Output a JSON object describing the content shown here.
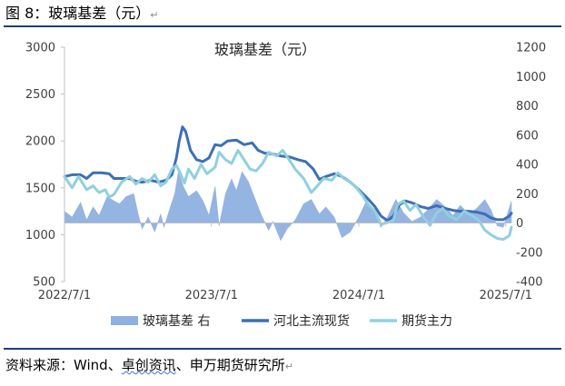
{
  "figure_label": "图 8：玻璃基差（元）",
  "return_mark": "↵",
  "source_prefix": "资料来源：Wind、",
  "source_squiggle": "卓创资讯",
  "source_suffix": "、申万期货研究所",
  "colors": {
    "basis": "#8fb0e0",
    "spot": "#3d6fb6",
    "futures": "#8fd0de",
    "rule": "#1f3f7a"
  },
  "chart_data": {
    "type": "line",
    "title": "玻璃基差（元）",
    "x_ticks": [
      "2022/7/1",
      "2023/7/1",
      "2024/7/1",
      "2025/7/1"
    ],
    "x_range": [
      "2022-07-01",
      "2025-07-15"
    ],
    "y_left": {
      "min": 500,
      "max": 3000,
      "ticks": [
        500,
        1000,
        1500,
        2000,
        2500,
        3000
      ]
    },
    "y_right": {
      "min": -400,
      "max": 1200,
      "ticks": [
        -400,
        -200,
        0,
        200,
        400,
        600,
        800,
        1000,
        1200
      ]
    },
    "legend": [
      "玻璃基差 右",
      "河北主流现货",
      "期货主力"
    ],
    "legend_position": "bottom",
    "series": [
      {
        "name": "玻璃基差 右",
        "kind": "area",
        "axis": "right",
        "points": [
          [
            "2022-07-01",
            80
          ],
          [
            "2022-07-20",
            40
          ],
          [
            "2022-08-10",
            140
          ],
          [
            "2022-08-25",
            20
          ],
          [
            "2022-09-10",
            110
          ],
          [
            "2022-09-25",
            50
          ],
          [
            "2022-10-15",
            180
          ],
          [
            "2022-11-01",
            150
          ],
          [
            "2022-11-15",
            130
          ],
          [
            "2022-12-01",
            180
          ],
          [
            "2022-12-20",
            200
          ],
          [
            "2022-12-31",
            60
          ],
          [
            "2023-01-10",
            -40
          ],
          [
            "2023-01-25",
            40
          ],
          [
            "2023-02-10",
            -60
          ],
          [
            "2023-02-25",
            60
          ],
          [
            "2023-03-05",
            -30
          ],
          [
            "2023-03-20",
            100
          ],
          [
            "2023-04-01",
            200
          ],
          [
            "2023-04-10",
            350
          ],
          [
            "2023-04-22",
            250
          ],
          [
            "2023-05-05",
            180
          ],
          [
            "2023-05-25",
            220
          ],
          [
            "2023-06-10",
            150
          ],
          [
            "2023-06-25",
            50
          ],
          [
            "2023-07-10",
            250
          ],
          [
            "2023-07-20",
            -20
          ],
          [
            "2023-08-05",
            200
          ],
          [
            "2023-08-20",
            300
          ],
          [
            "2023-09-01",
            220
          ],
          [
            "2023-09-15",
            350
          ],
          [
            "2023-10-01",
            280
          ],
          [
            "2023-10-15",
            180
          ],
          [
            "2023-11-01",
            60
          ],
          [
            "2023-11-20",
            -50
          ],
          [
            "2023-12-01",
            10
          ],
          [
            "2023-12-20",
            -120
          ],
          [
            "2024-01-05",
            -40
          ],
          [
            "2024-01-25",
            20
          ],
          [
            "2024-02-15",
            130
          ],
          [
            "2024-03-05",
            160
          ],
          [
            "2024-03-25",
            60
          ],
          [
            "2024-04-10",
            110
          ],
          [
            "2024-05-01",
            40
          ],
          [
            "2024-05-20",
            -100
          ],
          [
            "2024-06-10",
            -60
          ],
          [
            "2024-07-01",
            40
          ],
          [
            "2024-07-20",
            150
          ],
          [
            "2024-08-10",
            60
          ],
          [
            "2024-08-25",
            -30
          ],
          [
            "2024-09-10",
            40
          ],
          [
            "2024-10-01",
            160
          ],
          [
            "2024-10-20",
            70
          ],
          [
            "2024-11-10",
            10
          ],
          [
            "2024-12-01",
            40
          ],
          [
            "2024-12-20",
            90
          ],
          [
            "2025-01-10",
            160
          ],
          [
            "2025-02-01",
            110
          ],
          [
            "2025-02-20",
            50
          ],
          [
            "2025-03-10",
            120
          ],
          [
            "2025-04-01",
            60
          ],
          [
            "2025-04-20",
            100
          ],
          [
            "2025-05-10",
            160
          ],
          [
            "2025-05-25",
            90
          ],
          [
            "2025-06-10",
            -20
          ],
          [
            "2025-06-25",
            -30
          ],
          [
            "2025-07-15",
            150
          ]
        ]
      },
      {
        "name": "河北主流现货",
        "kind": "line",
        "axis": "left",
        "points": [
          [
            "2022-07-01",
            1620
          ],
          [
            "2022-07-20",
            1640
          ],
          [
            "2022-08-10",
            1640
          ],
          [
            "2022-08-25",
            1600
          ],
          [
            "2022-09-10",
            1660
          ],
          [
            "2022-10-01",
            1660
          ],
          [
            "2022-10-20",
            1650
          ],
          [
            "2022-11-01",
            1600
          ],
          [
            "2022-11-20",
            1600
          ],
          [
            "2022-12-10",
            1600
          ],
          [
            "2022-12-25",
            1570
          ],
          [
            "2023-01-10",
            1560
          ],
          [
            "2023-01-31",
            1580
          ],
          [
            "2023-02-20",
            1560
          ],
          [
            "2023-03-10",
            1580
          ],
          [
            "2023-03-25",
            1640
          ],
          [
            "2023-04-05",
            1820
          ],
          [
            "2023-04-12",
            2000
          ],
          [
            "2023-04-20",
            2150
          ],
          [
            "2023-04-28",
            2100
          ],
          [
            "2023-05-10",
            1900
          ],
          [
            "2023-05-25",
            1800
          ],
          [
            "2023-06-10",
            1780
          ],
          [
            "2023-06-25",
            1820
          ],
          [
            "2023-07-10",
            1960
          ],
          [
            "2023-07-25",
            1950
          ],
          [
            "2023-08-10",
            2000
          ],
          [
            "2023-09-01",
            2010
          ],
          [
            "2023-09-20",
            1960
          ],
          [
            "2023-10-10",
            1980
          ],
          [
            "2023-10-25",
            1900
          ],
          [
            "2023-11-10",
            1870
          ],
          [
            "2023-12-01",
            1860
          ],
          [
            "2023-12-20",
            1840
          ],
          [
            "2024-01-10",
            1830
          ],
          [
            "2024-02-01",
            1800
          ],
          [
            "2024-02-20",
            1780
          ],
          [
            "2024-03-10",
            1700
          ],
          [
            "2024-03-25",
            1590
          ],
          [
            "2024-04-10",
            1620
          ],
          [
            "2024-05-01",
            1650
          ],
          [
            "2024-05-20",
            1620
          ],
          [
            "2024-06-10",
            1560
          ],
          [
            "2024-07-01",
            1480
          ],
          [
            "2024-07-20",
            1400
          ],
          [
            "2024-08-10",
            1300
          ],
          [
            "2024-08-25",
            1200
          ],
          [
            "2024-09-10",
            1150
          ],
          [
            "2024-09-25",
            1200
          ],
          [
            "2024-10-10",
            1320
          ],
          [
            "2024-10-25",
            1360
          ],
          [
            "2024-11-10",
            1340
          ],
          [
            "2024-12-01",
            1300
          ],
          [
            "2024-12-20",
            1280
          ],
          [
            "2025-01-10",
            1310
          ],
          [
            "2025-02-01",
            1280
          ],
          [
            "2025-02-20",
            1260
          ],
          [
            "2025-03-10",
            1250
          ],
          [
            "2025-04-01",
            1250
          ],
          [
            "2025-04-20",
            1240
          ],
          [
            "2025-05-10",
            1220
          ],
          [
            "2025-05-25",
            1180
          ],
          [
            "2025-06-10",
            1160
          ],
          [
            "2025-06-25",
            1160
          ],
          [
            "2025-07-10",
            1200
          ],
          [
            "2025-07-15",
            1230
          ]
        ]
      },
      {
        "name": "期货主力",
        "kind": "line",
        "axis": "left",
        "points": [
          [
            "2022-07-01",
            1620
          ],
          [
            "2022-07-20",
            1500
          ],
          [
            "2022-08-05",
            1620
          ],
          [
            "2022-08-25",
            1480
          ],
          [
            "2022-09-10",
            1520
          ],
          [
            "2022-09-25",
            1450
          ],
          [
            "2022-10-10",
            1480
          ],
          [
            "2022-10-20",
            1400
          ],
          [
            "2022-11-01",
            1430
          ],
          [
            "2022-11-20",
            1560
          ],
          [
            "2022-12-10",
            1620
          ],
          [
            "2022-12-25",
            1540
          ],
          [
            "2023-01-10",
            1600
          ],
          [
            "2023-01-25",
            1560
          ],
          [
            "2023-02-10",
            1640
          ],
          [
            "2023-02-25",
            1520
          ],
          [
            "2023-03-10",
            1560
          ],
          [
            "2023-03-25",
            1700
          ],
          [
            "2023-04-05",
            1740
          ],
          [
            "2023-04-15",
            1650
          ],
          [
            "2023-04-25",
            1550
          ],
          [
            "2023-05-05",
            1700
          ],
          [
            "2023-05-20",
            1600
          ],
          [
            "2023-06-05",
            1750
          ],
          [
            "2023-06-20",
            1650
          ],
          [
            "2023-07-10",
            1720
          ],
          [
            "2023-07-20",
            1880
          ],
          [
            "2023-08-05",
            1800
          ],
          [
            "2023-08-20",
            1760
          ],
          [
            "2023-09-05",
            1900
          ],
          [
            "2023-09-20",
            1800
          ],
          [
            "2023-10-05",
            1700
          ],
          [
            "2023-10-20",
            1680
          ],
          [
            "2023-11-05",
            1760
          ],
          [
            "2023-11-20",
            1880
          ],
          [
            "2023-12-10",
            1840
          ],
          [
            "2023-12-25",
            1900
          ],
          [
            "2024-01-10",
            1800
          ],
          [
            "2024-01-25",
            1700
          ],
          [
            "2024-02-15",
            1600
          ],
          [
            "2024-03-05",
            1450
          ],
          [
            "2024-03-20",
            1520
          ],
          [
            "2024-04-05",
            1600
          ],
          [
            "2024-04-25",
            1580
          ],
          [
            "2024-05-10",
            1660
          ],
          [
            "2024-05-25",
            1600
          ],
          [
            "2024-06-10",
            1560
          ],
          [
            "2024-06-25",
            1500
          ],
          [
            "2024-07-10",
            1420
          ],
          [
            "2024-07-25",
            1320
          ],
          [
            "2024-08-10",
            1250
          ],
          [
            "2024-08-25",
            1110
          ],
          [
            "2024-09-10",
            1130
          ],
          [
            "2024-09-25",
            1150
          ],
          [
            "2024-10-05",
            1320
          ],
          [
            "2024-10-20",
            1360
          ],
          [
            "2024-11-05",
            1260
          ],
          [
            "2024-11-20",
            1320
          ],
          [
            "2024-12-10",
            1180
          ],
          [
            "2024-12-25",
            1100
          ],
          [
            "2025-01-10",
            1230
          ],
          [
            "2025-01-25",
            1280
          ],
          [
            "2025-02-10",
            1200
          ],
          [
            "2025-03-01",
            1160
          ],
          [
            "2025-03-20",
            1250
          ],
          [
            "2025-04-10",
            1200
          ],
          [
            "2025-04-25",
            1150
          ],
          [
            "2025-05-10",
            1050
          ],
          [
            "2025-05-25",
            1000
          ],
          [
            "2025-06-10",
            960
          ],
          [
            "2025-06-25",
            950
          ],
          [
            "2025-07-10",
            990
          ],
          [
            "2025-07-15",
            1080
          ]
        ]
      }
    ]
  }
}
